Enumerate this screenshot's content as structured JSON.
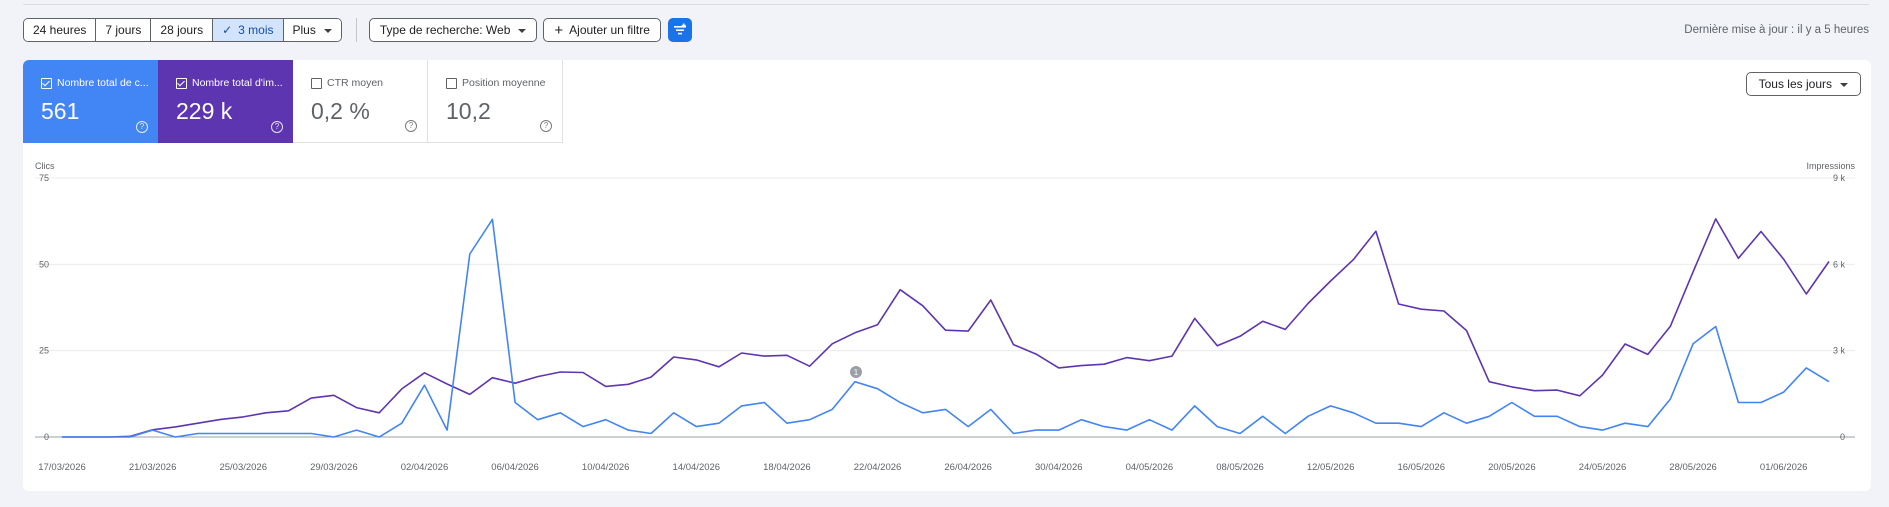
{
  "date_ranges": [
    "24 heures",
    "7 jours",
    "28 jours",
    "3 mois",
    "Plus"
  ],
  "active_range": "3 mois",
  "filters": {
    "search_type": "Type de recherche: Web",
    "add_filter": "Ajouter un filtre"
  },
  "last_updated": "Dernière mise à jour : il y a 5 heures",
  "metrics": {
    "clicks": {
      "label": "Nombre total de c...",
      "value": "561"
    },
    "impressions": {
      "label": "Nombre total d'im...",
      "value": "229 k"
    },
    "ctr": {
      "label": "CTR moyen",
      "value": "0,2 %"
    },
    "position": {
      "label": "Position moyenne",
      "value": "10,2"
    }
  },
  "granularity": "Tous les jours",
  "annotation_marker": "1",
  "colors": {
    "clicks": "#4285f4",
    "impressions": "#5e35b1",
    "accent": "#1a73e8"
  },
  "chart_data": {
    "type": "line",
    "yleft_label": "Clics",
    "yright_label": "Impressions",
    "yleft_ticks": [
      "0",
      "25",
      "50",
      "75"
    ],
    "yright_ticks": [
      "0",
      "3 k",
      "6 k",
      "9 k"
    ],
    "yleft_range": [
      0,
      75
    ],
    "yright_range": [
      0,
      9000
    ],
    "x_labels": [
      "17/03/2026",
      "21/03/2026",
      "25/03/2026",
      "29/03/2026",
      "02/04/2026",
      "06/04/2026",
      "10/04/2026",
      "14/04/2026",
      "18/04/2026",
      "22/04/2026",
      "26/04/2026",
      "30/04/2026",
      "04/05/2026",
      "08/05/2026",
      "12/05/2026",
      "16/05/2026",
      "20/05/2026",
      "24/05/2026",
      "28/05/2026",
      "01/06/2026"
    ],
    "series": [
      {
        "name": "Clics",
        "axis": "left",
        "values": [
          0,
          0,
          0,
          0,
          2,
          0,
          1,
          1,
          1,
          1,
          1,
          1,
          0,
          2,
          0,
          4,
          15,
          2,
          53,
          63,
          10,
          5,
          7,
          3,
          5,
          2,
          1,
          7,
          3,
          4,
          9,
          10,
          4,
          5,
          8,
          16,
          14,
          10,
          7,
          8,
          3,
          8,
          1,
          2,
          2,
          5,
          3,
          2,
          5,
          2,
          9,
          3,
          1,
          6,
          1,
          6,
          9,
          7,
          4,
          4,
          3,
          7,
          4,
          6,
          10,
          6,
          6,
          3,
          2,
          4,
          3,
          11,
          27,
          32,
          10,
          10,
          13,
          20,
          16
        ]
      },
      {
        "name": "Impressions",
        "axis": "right",
        "values": [
          0,
          0,
          0,
          20,
          250,
          350,
          480,
          610,
          700,
          840,
          910,
          1350,
          1450,
          1020,
          840,
          1670,
          2230,
          1840,
          1480,
          2060,
          1870,
          2100,
          2260,
          2240,
          1760,
          1830,
          2080,
          2780,
          2680,
          2440,
          2920,
          2810,
          2840,
          2460,
          3240,
          3620,
          3900,
          5120,
          4560,
          3710,
          3680,
          4760,
          3210,
          2880,
          2400,
          2480,
          2530,
          2760,
          2650,
          2810,
          4120,
          3170,
          3500,
          4020,
          3740,
          4640,
          5420,
          6160,
          7150,
          4620,
          4440,
          4380,
          3700,
          1920,
          1740,
          1610,
          1630,
          1430,
          2150,
          3230,
          2870,
          3850,
          5740,
          7580,
          6210,
          7140,
          6180,
          4970,
          6100
        ]
      }
    ]
  }
}
